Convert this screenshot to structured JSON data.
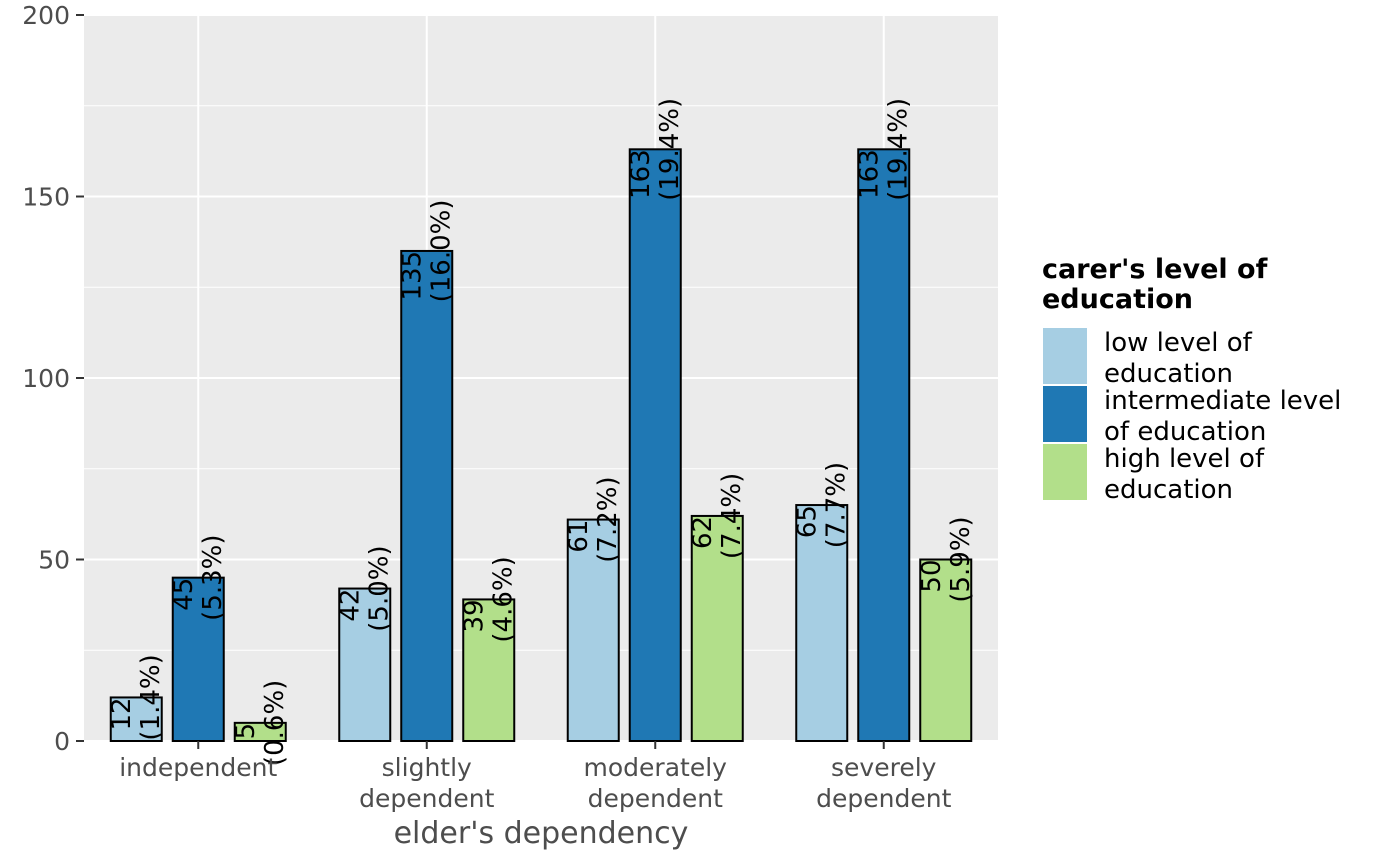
{
  "chart_data": {
    "type": "bar",
    "xlabel": "elder's dependency",
    "ylabel": "",
    "ylim": [
      0,
      200
    ],
    "yticks": [
      0,
      50,
      100,
      150,
      200
    ],
    "grid": true,
    "legend_position": "right",
    "legend_title": [
      "carer's level of",
      "education"
    ],
    "categories": [
      [
        "independent"
      ],
      [
        "slightly",
        "dependent"
      ],
      [
        "moderately",
        "dependent"
      ],
      [
        "severely",
        "dependent"
      ]
    ],
    "series": [
      {
        "name": "low level of education",
        "legend_lines": [
          "low level of",
          "education"
        ],
        "color": "#a6cee3",
        "values": [
          12,
          42,
          61,
          65
        ],
        "percent_labels": [
          "(1.4%)",
          "(5.0%)",
          "(7.2%)",
          "(7.7%)"
        ]
      },
      {
        "name": "intermediate level of education",
        "legend_lines": [
          "intermediate level",
          "of education"
        ],
        "color": "#1f78b4",
        "values": [
          45,
          135,
          163,
          163
        ],
        "percent_labels": [
          "(5.3%)",
          "(16.0%)",
          "(19.4%)",
          "(19.4%)"
        ]
      },
      {
        "name": "high level of education",
        "legend_lines": [
          "high level of",
          "education"
        ],
        "color": "#b2df8a",
        "values": [
          5,
          39,
          62,
          50
        ],
        "percent_labels": [
          "(0.6%)",
          "(4.6%)",
          "(7.4%)",
          "(5.9%)"
        ]
      }
    ],
    "panel_background": "#ebebeb",
    "grid_color": "#ffffff",
    "bar_outline": "#000000"
  }
}
